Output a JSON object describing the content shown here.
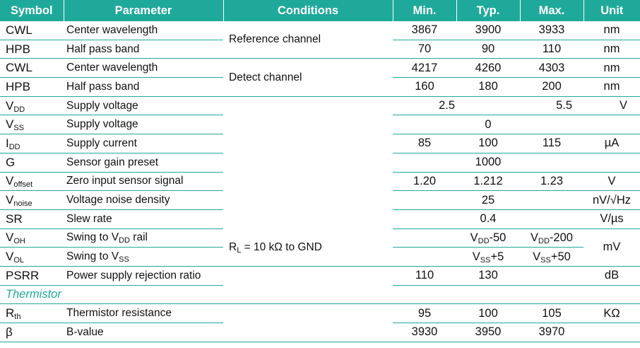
{
  "headers": {
    "symbol": "Symbol",
    "parameter": "Parameter",
    "conditions": "Conditions",
    "min": "Min.",
    "typ": "Typ.",
    "max": "Max.",
    "unit": "Unit"
  },
  "conditions": {
    "reference": "Reference channel",
    "detect": "Detect channel",
    "rl_prefix": "R",
    "rl_sub": "L",
    "rl_suffix": " = 10 kΩ to GND"
  },
  "rows": {
    "cwl_ref": {
      "symbol": "CWL",
      "parameter": "Center wavelength",
      "min": "3867",
      "typ": "3900",
      "max": "3933",
      "unit": "nm"
    },
    "hpb_ref": {
      "symbol": "HPB",
      "parameter": "Half pass band",
      "min": "70",
      "typ": "90",
      "max": "110",
      "unit": "nm"
    },
    "cwl_det": {
      "symbol": "CWL",
      "parameter": "Center wavelength",
      "min": "4217",
      "typ": "4260",
      "max": "4303",
      "unit": "nm"
    },
    "hpb_det": {
      "symbol": "HPB",
      "parameter": "Half pass band",
      "min": "160",
      "typ": "180",
      "max": "200",
      "unit": "nm"
    },
    "vdd": {
      "sym_main": "V",
      "sym_sub": "DD",
      "parameter": "Supply voltage",
      "min": "2.5",
      "max": "5.5",
      "unit": "V"
    },
    "vss": {
      "sym_main": "V",
      "sym_sub": "SS",
      "parameter": "Supply voltage",
      "typ": "0"
    },
    "idd": {
      "sym_main": "I",
      "sym_sub": "DD",
      "parameter": "Supply current",
      "min": "85",
      "typ": "100",
      "max": "115",
      "unit": "µA"
    },
    "g": {
      "symbol": "G",
      "parameter": "Sensor gain preset",
      "typ": "1000"
    },
    "voffset": {
      "sym_main": "V",
      "sym_sub": "offset",
      "parameter": "Zero input sensor signal",
      "min": "1.20",
      "typ": "1.212",
      "max": "1.23",
      "unit": "V"
    },
    "vnoise": {
      "sym_main": "V",
      "sym_sub": "noise",
      "parameter": "Voltage noise density",
      "typ": "25",
      "unit": "nV/√Hz"
    },
    "sr": {
      "symbol": "SR",
      "parameter": "Slew rate",
      "typ": "0.4",
      "unit": "V/µs"
    },
    "voh": {
      "sym_main": "V",
      "sym_sub": "OH",
      "param_pre": "Swing to V",
      "param_sub": "DD",
      "param_post": " rail",
      "typ_main": "V",
      "typ_sub": "DD",
      "typ_post": "-50",
      "max_main": "V",
      "max_sub": "DD",
      "max_post": "-200",
      "unit": "mV"
    },
    "vol": {
      "sym_main": "V",
      "sym_sub": "OL",
      "param_pre": "Swing to V",
      "param_sub": "SS",
      "typ_main": "V",
      "typ_sub": "SS",
      "typ_post": "+5",
      "max_main": "V",
      "max_sub": "SS",
      "max_post": "+50"
    },
    "psrr": {
      "symbol": "PSRR",
      "parameter": "Power supply rejection ratio",
      "min": "110",
      "typ": "130",
      "unit": "dB"
    },
    "rth": {
      "sym_main": "R",
      "sym_sub": "th",
      "parameter": "Thermistor resistance",
      "min": "95",
      "typ": "100",
      "max": "105",
      "unit": "KΩ"
    },
    "beta": {
      "symbol": "β",
      "parameter": "B-value",
      "min": "3930",
      "typ": "3950",
      "max": "3970"
    }
  },
  "sections": {
    "thermistor": "Thermistor"
  },
  "colors": {
    "accent": "#1fa99a",
    "text": "#111111"
  }
}
